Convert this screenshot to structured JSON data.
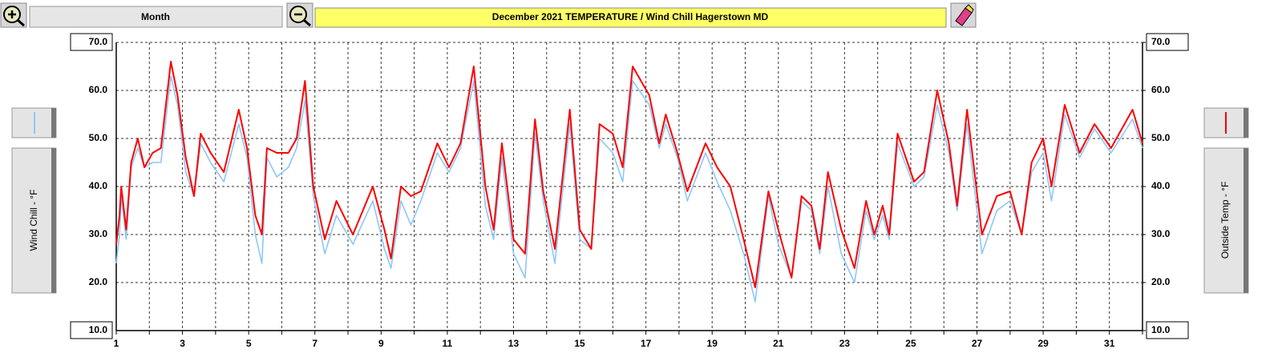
{
  "chart_data": {
    "type": "line",
    "title": "December  2021  TEMPERATURE / Wind Chill Hagerstown MD",
    "period_button": "Month",
    "x": [
      1,
      1.1,
      1.15,
      1.3,
      1.45,
      1.65,
      1.85,
      2.1,
      2.35,
      2.65,
      2.85,
      3.1,
      3.35,
      3.55,
      3.85,
      4.25,
      4.7,
      4.95,
      5.2,
      5.4,
      5.55,
      5.85,
      6.2,
      6.45,
      6.7,
      6.95,
      7.3,
      7.65,
      8.15,
      8.75,
      9.1,
      9.3,
      9.6,
      9.9,
      10.2,
      10.7,
      11.05,
      11.4,
      11.8,
      12.15,
      12.4,
      12.65,
      13,
      13.35,
      13.65,
      13.9,
      14.25,
      14.7,
      15,
      15.35,
      15.6,
      16,
      16.3,
      16.6,
      17.1,
      17.4,
      17.6,
      17.95,
      18.25,
      18.8,
      19.15,
      19.55,
      19.95,
      20.3,
      20.7,
      21,
      21.4,
      21.7,
      22,
      22.25,
      22.5,
      22.9,
      23.3,
      23.65,
      23.9,
      24.15,
      24.35,
      24.6,
      25.1,
      25.4,
      25.8,
      26.15,
      26.4,
      26.7,
      27.15,
      27.6,
      28,
      28.35,
      28.65,
      29,
      29.25,
      29.65,
      30.1,
      30.55,
      31.05,
      31.7,
      32
    ],
    "series": [
      {
        "name": "Wind Chill - °F",
        "color": "#8ec7f7",
        "axis": "y",
        "values": [
          24,
          30,
          38,
          29,
          44,
          48,
          44,
          45,
          45,
          63,
          57,
          43,
          38,
          49,
          45,
          41,
          53,
          46,
          30,
          24,
          46,
          42,
          44,
          48,
          58,
          38,
          26,
          34,
          28,
          37,
          27,
          23,
          37,
          32,
          37,
          47,
          43,
          48,
          62,
          36,
          29,
          46,
          26,
          21,
          51,
          37,
          24,
          53,
          29,
          27,
          50,
          47,
          41,
          62,
          57,
          48,
          53,
          46,
          37,
          47,
          41,
          35,
          26,
          16,
          38,
          28,
          21,
          37,
          35,
          26,
          40,
          26,
          20,
          35,
          29,
          34,
          29,
          49,
          40,
          42,
          57,
          47,
          35,
          53,
          26,
          35,
          37,
          30,
          43,
          47,
          37,
          55,
          46,
          52,
          47,
          54,
          48
        ]
      },
      {
        "name": "Outside Temp - °F",
        "color": "#ff0000",
        "axis": "y2",
        "values": [
          28,
          34,
          40,
          31,
          45,
          50,
          44,
          47,
          48,
          66,
          59,
          46,
          38,
          51,
          47,
          43,
          56,
          48,
          34,
          30,
          48,
          47,
          47,
          50,
          62,
          40,
          29,
          37,
          30,
          40,
          31,
          25,
          40,
          38,
          39,
          49,
          44,
          49,
          65,
          40,
          31,
          49,
          29,
          26,
          54,
          39,
          27,
          56,
          31,
          27,
          53,
          51,
          44,
          65,
          59,
          49,
          55,
          47,
          39,
          49,
          44,
          40,
          29,
          19,
          39,
          31,
          21,
          38,
          36,
          27,
          43,
          31,
          23,
          37,
          30,
          36,
          30,
          51,
          41,
          43,
          60,
          49,
          36,
          56,
          30,
          38,
          39,
          30,
          45,
          50,
          40,
          57,
          47,
          53,
          48,
          56,
          49
        ]
      }
    ],
    "xlim": [
      1,
      32
    ],
    "xticks": [
      1,
      3,
      5,
      7,
      9,
      11,
      13,
      15,
      17,
      19,
      21,
      23,
      25,
      27,
      29,
      31
    ],
    "xminorticks": [
      2,
      4,
      6,
      8,
      10,
      12,
      14,
      16,
      18,
      20,
      22,
      24,
      26,
      28,
      30,
      32
    ],
    "ylim": [
      10,
      70
    ],
    "yticks": [
      {
        "value": 10,
        "label": "10.0"
      },
      {
        "value": 20,
        "label": "20.0"
      },
      {
        "value": 30,
        "label": "30.0"
      },
      {
        "value": 40,
        "label": "40.0"
      },
      {
        "value": 50,
        "label": "50.0"
      },
      {
        "value": 60,
        "label": "60.0"
      },
      {
        "value": 70,
        "label": "70.0"
      }
    ],
    "y2lim": [
      10,
      70
    ],
    "y2ticks": [
      {
        "value": 10,
        "label": "10.0"
      },
      {
        "value": 20,
        "label": "20.0"
      },
      {
        "value": 30,
        "label": "30.0"
      },
      {
        "value": 40,
        "label": "40.0"
      },
      {
        "value": 50,
        "label": "50.0"
      },
      {
        "value": 60,
        "label": "60.0"
      },
      {
        "value": 70,
        "label": "70.0"
      }
    ],
    "grid": true
  }
}
